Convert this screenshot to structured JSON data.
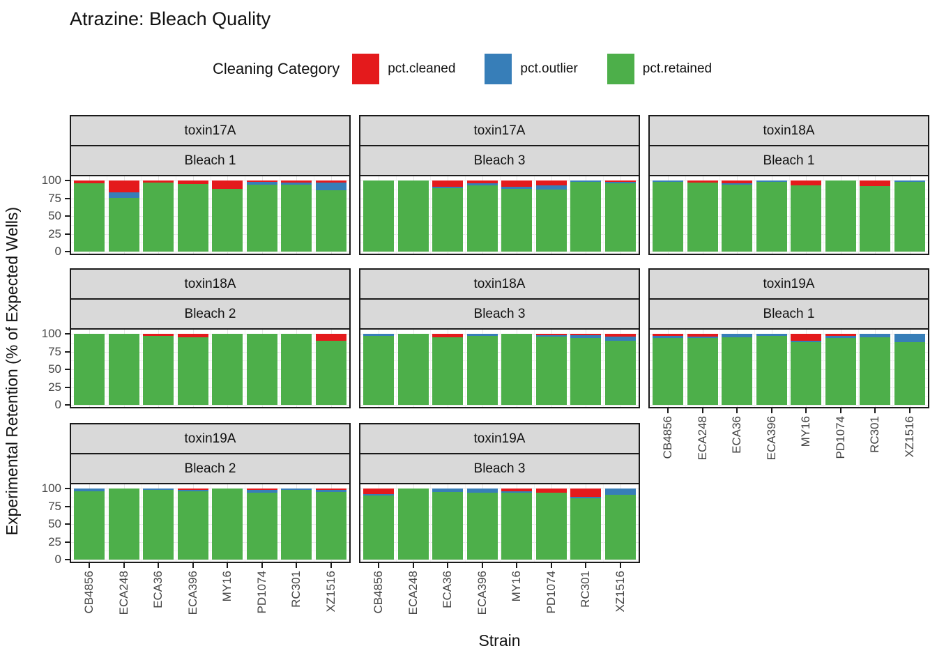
{
  "title": "Atrazine: Bleach Quality",
  "legend": {
    "title": "Cleaning Category",
    "items": [
      {
        "label": "pct.cleaned",
        "color": "#E41A1C"
      },
      {
        "label": "pct.outlier",
        "color": "#377EB8"
      },
      {
        "label": "pct.retained",
        "color": "#4DAF4A"
      }
    ]
  },
  "axes": {
    "x_label": "Strain",
    "y_label": "Experimental Retention (% of Expected Wells)",
    "y_ticks": [
      0,
      25,
      50,
      75,
      100
    ],
    "y_minor_ticks": [
      12.5,
      37.5,
      62.5,
      87.5
    ]
  },
  "chart_data": {
    "type": "bar",
    "stacked": true,
    "orientation": "vertical",
    "title": "Atrazine: Bleach Quality",
    "xlabel": "Strain",
    "ylabel": "Experimental Retention (% of Expected Wells)",
    "ylim": [
      0,
      100
    ],
    "y_ticks": [
      0,
      25,
      50,
      75,
      100
    ],
    "grid": true,
    "legend_position": "top",
    "categories": [
      "CB4856",
      "ECA248",
      "ECA36",
      "ECA396",
      "MY16",
      "PD1074",
      "RC301",
      "XZ1516"
    ],
    "series_names": [
      "pct.cleaned",
      "pct.outlier",
      "pct.retained"
    ],
    "series_colors": {
      "pct.cleaned": "#E41A1C",
      "pct.outlier": "#377EB8",
      "pct.retained": "#4DAF4A"
    },
    "stack_order_bottom_to_top": [
      "pct.retained",
      "pct.outlier",
      "pct.cleaned"
    ],
    "facet_grid": {
      "rows": 3,
      "cols": 3
    },
    "panels": [
      {
        "toxin": "toxin17A",
        "bleach": "Bleach 1",
        "row": 0,
        "col": 0,
        "show_x_axis": false,
        "show_y_axis": true,
        "series": {
          "pct.cleaned": [
            4,
            17,
            3,
            5,
            12,
            2,
            3,
            3
          ],
          "pct.outlier": [
            0,
            8,
            0,
            0,
            0,
            4,
            3,
            11
          ],
          "pct.retained": [
            96,
            75,
            97,
            95,
            88,
            94,
            94,
            86
          ]
        }
      },
      {
        "toxin": "toxin17A",
        "bleach": "Bleach 3",
        "row": 0,
        "col": 1,
        "show_x_axis": false,
        "show_y_axis": false,
        "series": {
          "pct.cleaned": [
            0,
            0,
            9,
            4,
            9,
            7,
            0,
            2
          ],
          "pct.outlier": [
            0,
            0,
            2,
            3,
            3,
            6,
            2,
            2
          ],
          "pct.retained": [
            100,
            100,
            89,
            93,
            88,
            87,
            98,
            96
          ]
        }
      },
      {
        "toxin": "toxin18A",
        "bleach": "Bleach 1",
        "row": 0,
        "col": 2,
        "show_x_axis": false,
        "show_y_axis": false,
        "series": {
          "pct.cleaned": [
            0,
            3,
            4,
            0,
            7,
            0,
            8,
            0
          ],
          "pct.outlier": [
            2,
            0,
            2,
            2,
            0,
            0,
            0,
            2
          ],
          "pct.retained": [
            98,
            97,
            94,
            98,
            93,
            100,
            92,
            98
          ]
        }
      },
      {
        "toxin": "toxin18A",
        "bleach": "Bleach 2",
        "row": 1,
        "col": 0,
        "show_x_axis": false,
        "show_y_axis": true,
        "series": {
          "pct.cleaned": [
            0,
            0,
            3,
            5,
            0,
            0,
            0,
            10
          ],
          "pct.outlier": [
            0,
            0,
            0,
            0,
            0,
            0,
            0,
            0
          ],
          "pct.retained": [
            100,
            100,
            97,
            95,
            100,
            100,
            100,
            90
          ]
        }
      },
      {
        "toxin": "toxin18A",
        "bleach": "Bleach 3",
        "row": 1,
        "col": 1,
        "show_x_axis": false,
        "show_y_axis": false,
        "series": {
          "pct.cleaned": [
            0,
            0,
            5,
            0,
            0,
            2,
            2,
            4
          ],
          "pct.outlier": [
            3,
            0,
            0,
            3,
            0,
            2,
            4,
            6
          ],
          "pct.retained": [
            97,
            100,
            95,
            97,
            100,
            96,
            94,
            90
          ]
        }
      },
      {
        "toxin": "toxin19A",
        "bleach": "Bleach 1",
        "row": 1,
        "col": 2,
        "show_x_axis": true,
        "show_y_axis": false,
        "series": {
          "pct.cleaned": [
            3,
            4,
            0,
            0,
            10,
            3,
            0,
            0
          ],
          "pct.outlier": [
            3,
            2,
            5,
            3,
            2,
            3,
            5,
            12
          ],
          "pct.retained": [
            94,
            94,
            95,
            97,
            88,
            94,
            95,
            88
          ]
        }
      },
      {
        "toxin": "toxin19A",
        "bleach": "Bleach 2",
        "row": 2,
        "col": 0,
        "show_x_axis": true,
        "show_y_axis": true,
        "series": {
          "pct.cleaned": [
            0,
            0,
            0,
            2,
            0,
            2,
            0,
            2
          ],
          "pct.outlier": [
            4,
            0,
            2,
            2,
            0,
            4,
            2,
            3
          ],
          "pct.retained": [
            96,
            100,
            98,
            96,
            100,
            94,
            98,
            95
          ]
        }
      },
      {
        "toxin": "toxin19A",
        "bleach": "Bleach 3",
        "row": 2,
        "col": 1,
        "show_x_axis": true,
        "show_y_axis": false,
        "series": {
          "pct.cleaned": [
            8,
            0,
            0,
            0,
            4,
            6,
            12,
            0
          ],
          "pct.outlier": [
            2,
            0,
            5,
            6,
            2,
            0,
            2,
            9
          ],
          "pct.retained": [
            90,
            100,
            95,
            94,
            94,
            94,
            86,
            91
          ]
        }
      }
    ]
  }
}
